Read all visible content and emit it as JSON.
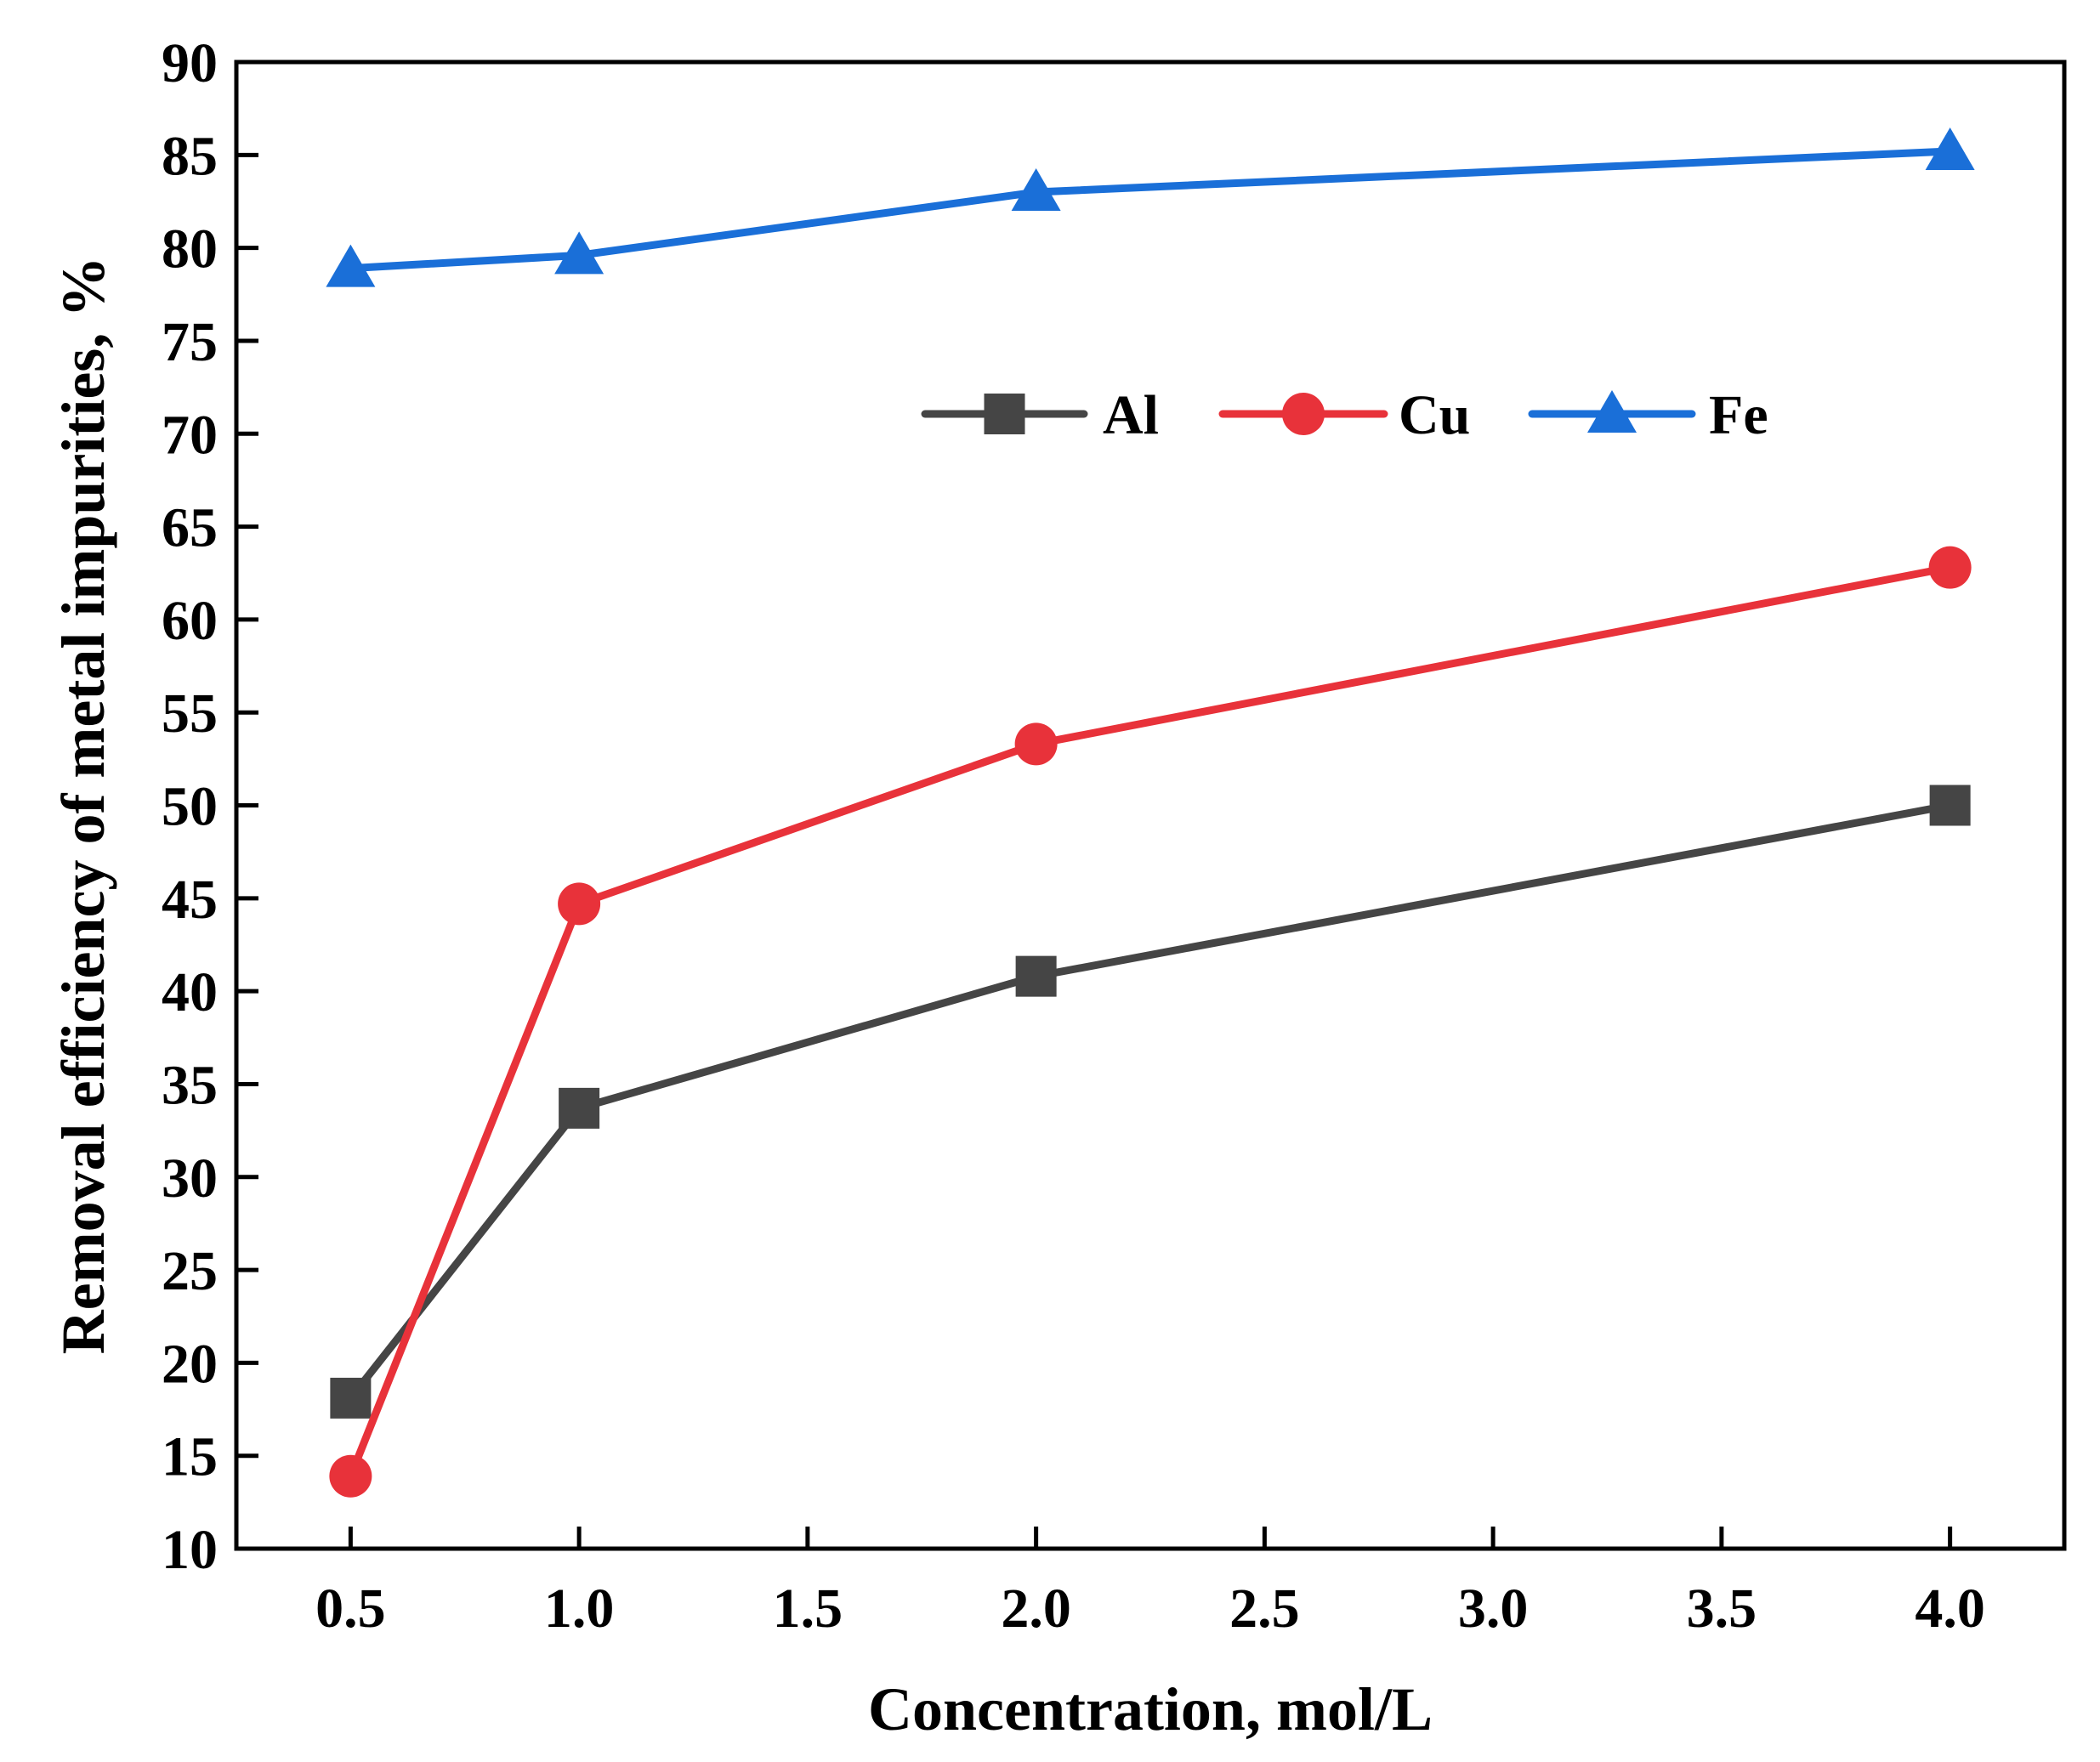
{
  "chart_data": {
    "type": "line",
    "title": "",
    "xlabel": "Concentration, mol/L",
    "ylabel": "Removal efficiency of metal impurities, %",
    "xlim": [
      0.25,
      4.25
    ],
    "ylim": [
      10,
      90
    ],
    "xticks": [
      "0.5",
      "1.0",
      "1.5",
      "2.0",
      "2.5",
      "3.0",
      "3.5",
      "4.0"
    ],
    "yticks": [
      "10",
      "15",
      "20",
      "25",
      "30",
      "35",
      "40",
      "45",
      "50",
      "55",
      "60",
      "65",
      "70",
      "75",
      "80",
      "85",
      "90"
    ],
    "grid": false,
    "legend_position": "upper-middle",
    "series": [
      {
        "name": "Al",
        "color": "#454545",
        "marker": "square",
        "x": [
          0.5,
          1.0,
          2.0,
          4.0
        ],
        "values": [
          18.1,
          33.7,
          40.8,
          50.0
        ]
      },
      {
        "name": "Cu",
        "color": "#e8323a",
        "marker": "circle",
        "x": [
          0.5,
          1.0,
          2.0,
          4.0
        ],
        "values": [
          13.9,
          44.7,
          53.3,
          62.8
        ]
      },
      {
        "name": "Fe",
        "color": "#1a6fd8",
        "marker": "triangle",
        "x": [
          0.5,
          1.0,
          2.0,
          4.0
        ],
        "values": [
          78.9,
          79.6,
          83.0,
          85.2
        ]
      }
    ]
  }
}
